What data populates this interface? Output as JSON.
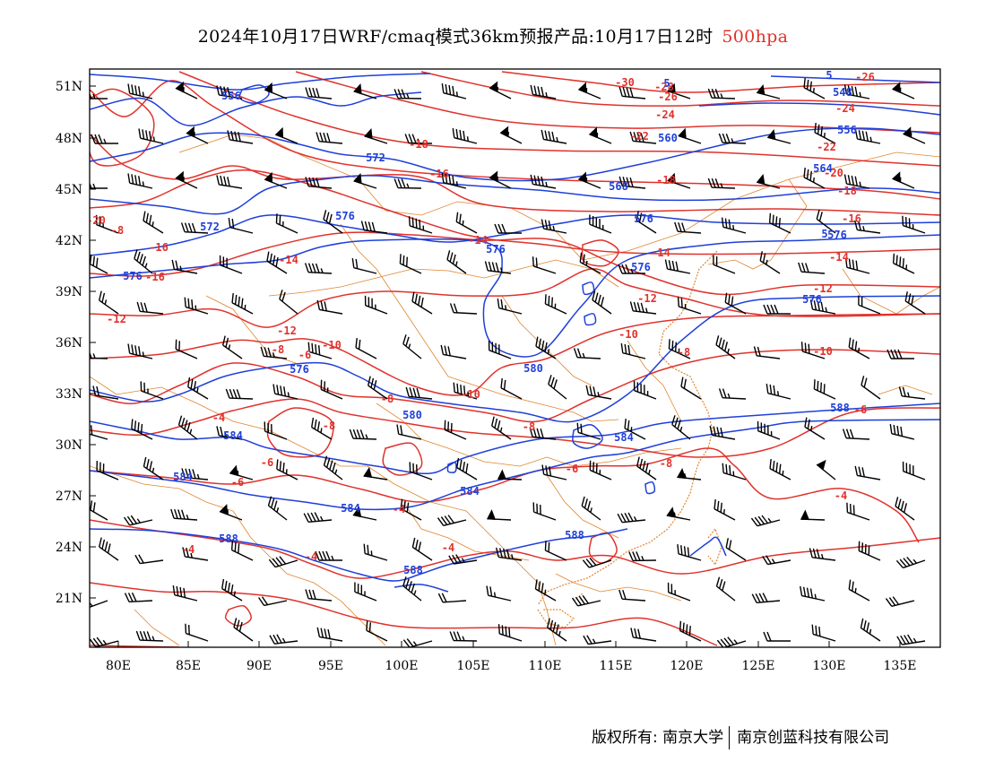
{
  "header": {
    "title": "2024年10月17日WRF/cmaq模式36km预报产品:10月17日12时",
    "level": "500hpa"
  },
  "colors": {
    "temperature": "#e0322c",
    "height": "#1f3fd9",
    "border": "#e0852e",
    "wind": "#000000"
  },
  "axes": {
    "lon_labels": [
      "80E",
      "85E",
      "90E",
      "95E",
      "100E",
      "105E",
      "110E",
      "115E",
      "120E",
      "125E",
      "130E",
      "135E"
    ],
    "lat_labels": [
      "51N",
      "48N",
      "45N",
      "42N",
      "39N",
      "36N",
      "33N",
      "30N",
      "27N",
      "24N",
      "21N"
    ]
  },
  "contour_labels": {
    "temperature": [
      "-30",
      "-28",
      "-26",
      "-26",
      "-24",
      "-24",
      "-22",
      "-22",
      "-20",
      "-20",
      "-18",
      "-18",
      "-18",
      "-16",
      "-16",
      "-16",
      "-16",
      "-14",
      "-14",
      "-14",
      "-14",
      "-12",
      "-12",
      "-12",
      "-12",
      "-10",
      "-10",
      "-10",
      "-10",
      "-8",
      "-8",
      "-8",
      "-8",
      "-8",
      "-8",
      "-8",
      "-6",
      "-6",
      "-6",
      "-6",
      "-6",
      "-4",
      "-4",
      "-4",
      "-4",
      "-4",
      "-4",
      "-4"
    ],
    "height": [
      "5",
      "5",
      "548",
      "556",
      "556",
      "568",
      "572",
      "572",
      "576",
      "576",
      "576",
      "576",
      "576",
      "576",
      "576",
      "576",
      "580",
      "580",
      "584",
      "584",
      "584",
      "584",
      "584",
      "588",
      "588",
      "588",
      "588",
      "560",
      "564",
      "5"
    ]
  },
  "footer": {
    "left": "版权所有: 南京大学",
    "right": "南京创蓝科技有限公司"
  }
}
